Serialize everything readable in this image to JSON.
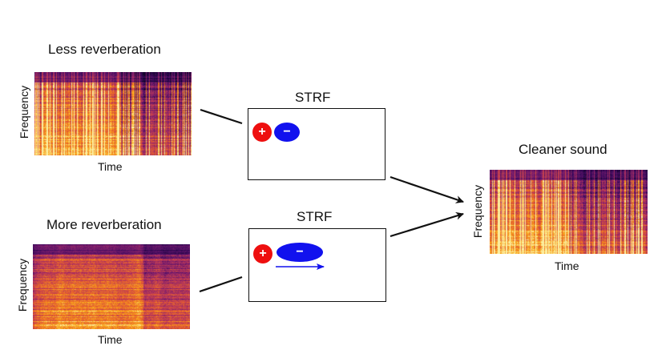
{
  "panels": {
    "less": {
      "title": "Less reverberation",
      "ylabel": "Frequency",
      "xlabel": "Time"
    },
    "more": {
      "title": "More reverberation",
      "ylabel": "Frequency",
      "xlabel": "Time"
    },
    "clean": {
      "title": "Cleaner sound",
      "ylabel": "Frequency",
      "xlabel": "Time"
    }
  },
  "strf_top": {
    "label": "STRF",
    "plus": "+",
    "minus": "−"
  },
  "strf_bottom": {
    "label": "STRF",
    "plus": "+",
    "minus": "−"
  },
  "colors": {
    "excitatory": "#ee0f0f",
    "inhibitory": "#1111ee",
    "colormap": [
      "#0a0420",
      "#3d0a5e",
      "#7a1d6c",
      "#b8365a",
      "#e8612c",
      "#f9a81a",
      "#fcf0a4"
    ]
  }
}
